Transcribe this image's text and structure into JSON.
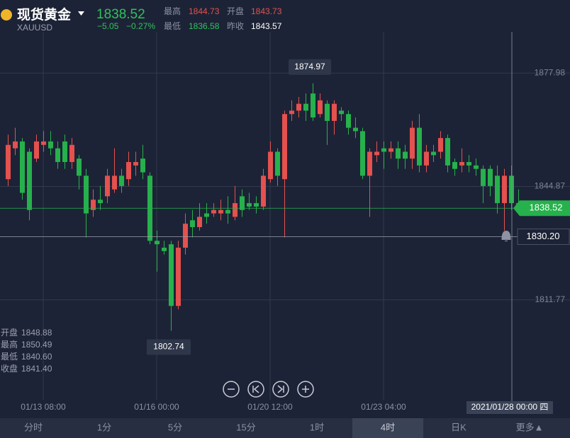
{
  "header": {
    "title": "现货黄金",
    "symbol": "XAUUSD",
    "price": "1838.52",
    "change": "−5.05",
    "change_pct": "−0.27%",
    "stats": [
      {
        "label": "最高",
        "value": "1844.73"
      },
      {
        "label": "开盘",
        "value": "1843.73"
      },
      {
        "label": "最低",
        "value": "1836.58"
      },
      {
        "label": "昨收",
        "value": "1843.57"
      }
    ]
  },
  "chart_data": {
    "type": "candlestick",
    "categories": [
      null,
      null,
      null,
      null,
      null,
      "01/13 08:00",
      null,
      null,
      null,
      null,
      null,
      null,
      null,
      null,
      null,
      null,
      null,
      null,
      null,
      null,
      null,
      "01/16 00:00",
      null,
      null,
      null,
      null,
      null,
      null,
      null,
      null,
      null,
      null,
      null,
      null,
      null,
      null,
      null,
      "01/20 12:00",
      null,
      null,
      null,
      null,
      null,
      null,
      null,
      null,
      null,
      null,
      null,
      null,
      null,
      null,
      null,
      "01/23 04:00",
      null,
      null,
      null,
      null,
      null,
      null,
      null,
      null,
      null,
      null,
      null,
      null,
      null,
      null,
      null,
      null,
      null,
      null,
      null
    ],
    "open": [
      1847,
      1856,
      1858,
      1855,
      1853,
      1857,
      1858,
      1856,
      1858,
      1852,
      1853,
      1848,
      1838,
      1841,
      1842,
      1844,
      1848,
      1847,
      1851,
      1853,
      1848,
      1829,
      1827,
      1828,
      1810,
      1827,
      1835,
      1833,
      1837,
      1837,
      1837,
      1838,
      1836,
      1842,
      1840,
      1840,
      1839,
      1847,
      1855,
      1847,
      1866,
      1867,
      1869,
      1872,
      1866,
      1869,
      1864,
      1867,
      1866,
      1862,
      1861,
      1848,
      1854,
      1856,
      1855,
      1856,
      1855,
      1853,
      1862,
      1851,
      1855,
      1855,
      1859,
      1852,
      1851,
      1852,
      1851,
      1850,
      1850,
      1848,
      1840,
      1848,
      1840
    ],
    "high": [
      1860,
      1862,
      1859,
      1856,
      1860,
      1861,
      1861,
      1858,
      1860,
      1859,
      1854,
      1850,
      1844,
      1845,
      1850,
      1856,
      1850,
      1855,
      1855,
      1857,
      1849,
      1832,
      1829,
      1829,
      1829,
      1837,
      1838,
      1840,
      1840,
      1840,
      1841,
      1842,
      1845,
      1844,
      1843,
      1842,
      1850,
      1858,
      1856,
      1867,
      1870,
      1871,
      1872,
      1874.97,
      1872,
      1870,
      1870,
      1868,
      1867,
      1865,
      1862,
      1856,
      1858,
      1858,
      1858,
      1858,
      1857,
      1864,
      1866,
      1857,
      1857,
      1861,
      1860,
      1853,
      1856,
      1854,
      1853,
      1851,
      1851,
      1851,
      1850,
      1851,
      1844
    ],
    "low": [
      1845,
      1854,
      1841,
      1835,
      1852,
      1855,
      1854,
      1850,
      1850,
      1850,
      1844,
      1830,
      1836,
      1838,
      1840,
      1843,
      1843,
      1845,
      1848,
      1847,
      1828,
      1820,
      1825,
      1802.74,
      1809,
      1825,
      1830,
      1832,
      1834,
      1836,
      1835,
      1834,
      1835,
      1836,
      1838,
      1837,
      1838,
      1846,
      1845,
      1830,
      1864,
      1865,
      1864,
      1864,
      1865,
      1857,
      1860,
      1864,
      1860,
      1859,
      1847,
      1836,
      1852,
      1850,
      1853,
      1850,
      1850,
      1850,
      1849,
      1849,
      1852,
      1853,
      1849,
      1848,
      1849,
      1849,
      1848,
      1840,
      1842,
      1837,
      1832,
      1838,
      1837
    ],
    "close": [
      1857,
      1858,
      1843,
      1838,
      1858,
      1858,
      1856,
      1852,
      1852,
      1857,
      1848,
      1837,
      1841,
      1840,
      1848,
      1848,
      1845,
      1852,
      1852,
      1849,
      1829,
      1828,
      1826,
      1810,
      1827,
      1834,
      1833,
      1836,
      1836,
      1838,
      1838,
      1837,
      1840,
      1838,
      1839,
      1839,
      1848,
      1855,
      1848,
      1866,
      1867,
      1869,
      1867,
      1865,
      1870,
      1864,
      1869,
      1866,
      1862,
      1861,
      1848,
      1855,
      1855,
      1855,
      1856,
      1853,
      1853,
      1862,
      1851,
      1855,
      1854,
      1859,
      1851,
      1850,
      1852,
      1851,
      1850,
      1845,
      1845,
      1840,
      1848,
      1840,
      1838.52
    ],
    "up_color": "#e4514e",
    "down_color": "#26b14c",
    "ylim": [
      1782.6,
      1890
    ],
    "yticks": [
      1811.77,
      1844.87,
      1877.98
    ],
    "alert": {
      "value": 1830.2,
      "label": "1830.20"
    },
    "crosshair": "2021/01/28 00:00 四",
    "ohlc_info": [
      {
        "label": "开盘",
        "value": "1848.88"
      },
      {
        "label": "最高",
        "value": "1850.49"
      },
      {
        "label": "最低",
        "value": "1840.60"
      },
      {
        "label": "收盘",
        "value": "1841.40"
      }
    ]
  },
  "tabs": [
    "分时",
    "1分",
    "5分",
    "15分",
    "1时",
    "4时",
    "日K",
    "更多▲"
  ],
  "active_tab": 5
}
